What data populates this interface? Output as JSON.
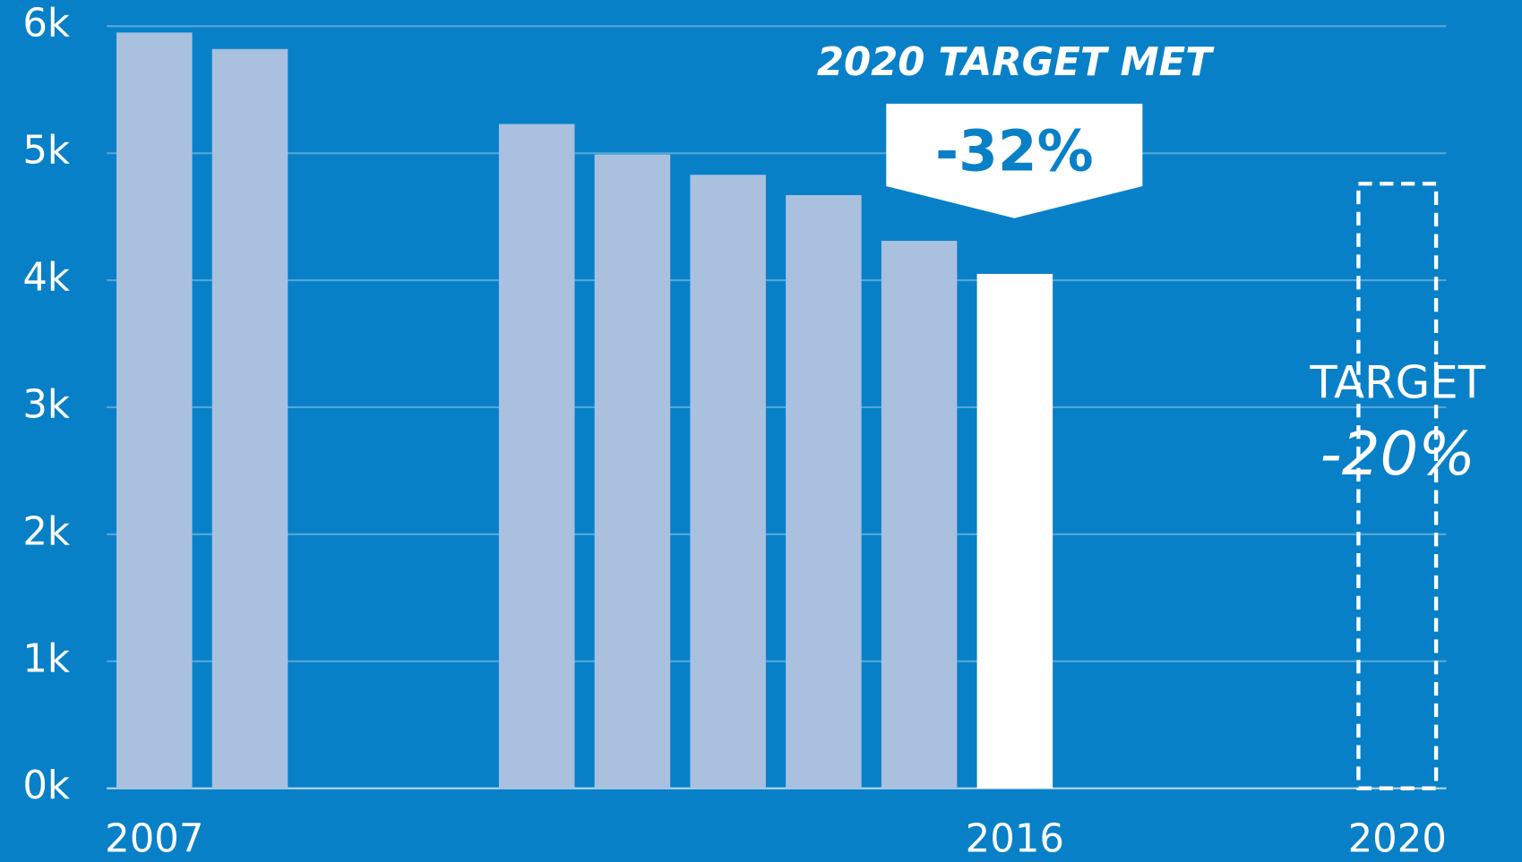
{
  "chart_data": {
    "type": "bar",
    "categories": [
      "2007",
      null,
      null,
      null,
      null,
      null,
      null,
      null,
      null,
      "2016",
      null,
      null,
      null,
      "2020"
    ],
    "values": [
      5950,
      5820,
      null,
      null,
      5230,
      4990,
      4830,
      4670,
      4310,
      4050,
      null,
      null,
      null,
      null
    ],
    "bar_colors": [
      "#a9c0df",
      "#a9c0df",
      null,
      null,
      "#a9c0df",
      "#a9c0df",
      "#a9c0df",
      "#a9c0df",
      "#a9c0df",
      "#ffffff",
      null,
      null,
      null,
      null
    ],
    "target_values": [
      null,
      null,
      null,
      null,
      null,
      null,
      null,
      null,
      null,
      null,
      null,
      null,
      null,
      4760
    ],
    "target_style": "dashed",
    "background": "#0880c8",
    "ylim": [
      0,
      6000
    ],
    "yticks": [
      {
        "value": 0,
        "label": "0k"
      },
      {
        "value": 1000,
        "label": "1k"
      },
      {
        "value": 2000,
        "label": "2k"
      },
      {
        "value": 3000,
        "label": "3k"
      },
      {
        "value": 4000,
        "label": "4k"
      },
      {
        "value": 5000,
        "label": "5k"
      },
      {
        "value": 6000,
        "label": "6k"
      }
    ],
    "grid": true,
    "annotations": {
      "headline": "2020 TARGET MET",
      "achieved": "-32%",
      "target_label": "TARGET",
      "target_change": "-20%"
    }
  }
}
